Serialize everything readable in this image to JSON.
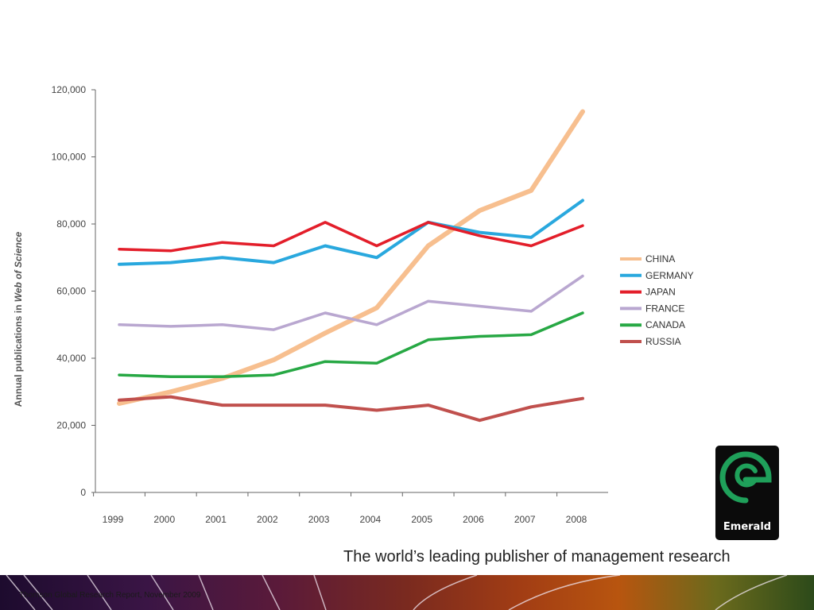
{
  "chart_data": {
    "type": "line",
    "title": "",
    "xlabel": "",
    "ylabel_parts": [
      "Annual publications in ",
      "Web of Science"
    ],
    "x": [
      "1999",
      "2000",
      "2001",
      "2002",
      "2003",
      "2004",
      "2005",
      "2006",
      "2007",
      "2008"
    ],
    "yticks": [
      "0",
      "20,000",
      "40,000",
      "60,000",
      "80,000",
      "100,000",
      "120,000"
    ],
    "ylim": [
      0,
      120000
    ],
    "grid": false,
    "legend_position": "right",
    "series": [
      {
        "name": "CHINA",
        "color": "#f7bf8f",
        "values": [
          26500,
          30000,
          34000,
          39500,
          47500,
          55000,
          73500,
          84000,
          90000,
          113500
        ]
      },
      {
        "name": "GERMANY",
        "color": "#29a8de",
        "values": [
          68000,
          68500,
          70000,
          68500,
          73500,
          70000,
          80500,
          77500,
          76000,
          87000
        ]
      },
      {
        "name": "JAPAN",
        "color": "#e31e2a",
        "values": [
          72500,
          72000,
          74500,
          73500,
          80500,
          73500,
          80500,
          76500,
          73500,
          79500
        ]
      },
      {
        "name": "FRANCE",
        "color": "#b9a7d0",
        "values": [
          50000,
          49500,
          50000,
          48500,
          53500,
          50000,
          57000,
          55500,
          54000,
          64500
        ]
      },
      {
        "name": "CANADA",
        "color": "#27a844",
        "values": [
          35000,
          34500,
          34500,
          35000,
          39000,
          38500,
          45500,
          46500,
          47000,
          53500
        ]
      },
      {
        "name": "RUSSIA",
        "color": "#c0504d",
        "values": [
          27500,
          28500,
          26000,
          26000,
          26000,
          24500,
          26000,
          21500,
          25500,
          28000
        ]
      }
    ]
  },
  "branding": {
    "tagline": "The world’s leading publisher of management research",
    "logo_text": "Emerald",
    "logo_color": "#1fa05a"
  },
  "footer": {
    "source": "Thomson Global Research Report, November 2009"
  }
}
